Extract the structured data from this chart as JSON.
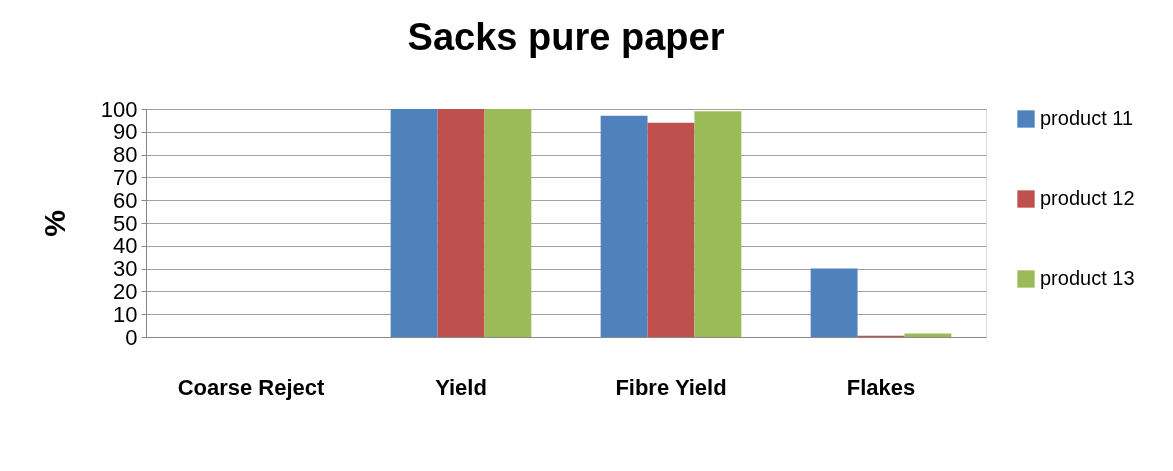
{
  "chart_data": {
    "type": "bar",
    "title": "Sacks pure paper",
    "ylabel": "%",
    "categories": [
      "Coarse Reject",
      "Yield",
      "Fibre Yield",
      "Flakes"
    ],
    "series": [
      {
        "name": "product 11",
        "color": "#4f81bd",
        "values": [
          0,
          100,
          97,
          30
        ]
      },
      {
        "name": "product 12",
        "color": "#c0504d",
        "values": [
          0,
          100,
          94,
          0.5
        ]
      },
      {
        "name": "product 13",
        "color": "#9bbb59",
        "values": [
          0,
          100,
          99,
          1.5
        ]
      }
    ],
    "ylim": [
      0,
      100
    ],
    "yticks": [
      0,
      10,
      20,
      30,
      40,
      50,
      60,
      70,
      80,
      90,
      100
    ],
    "grid": "y",
    "legend": "right"
  }
}
